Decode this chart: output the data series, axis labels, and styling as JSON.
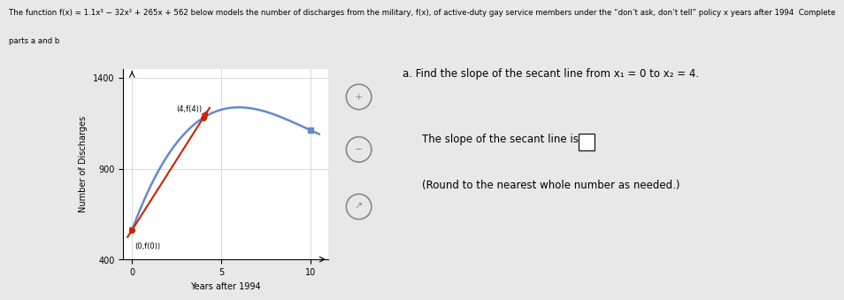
{
  "xlabel": "Years after 1994",
  "ylabel": "Number of Discharges",
  "xlim": [
    -0.5,
    11
  ],
  "ylim": [
    400,
    1450
  ],
  "yticks": [
    400,
    900,
    1400
  ],
  "xticks": [
    0,
    5,
    10
  ],
  "curve_color": "#6688cc",
  "secant_color": "#cc2200",
  "point1_x": 0,
  "point2_x": 4,
  "point1_label": "(0,f(0))",
  "point2_label": "(4,f(4))",
  "a_text": "a. Find the slope of the secant line from x₁ = 0 to x₂ = 4.",
  "slope_text": "The slope of the secant line is ",
  "round_text": "(Round to the nearest whole number as needed.)",
  "fig_bg": "#e8e8e8",
  "plot_bg": "#ffffff",
  "header_line1": "The function f(x) = 1.1x³ − 32x² + 265x + 562 below models the number of discharges from the military, f(x), of active-duty gay service members under the “don’t ask, don’t tell” policy x years after 1994  Complete",
  "header_line2": "parts a and b"
}
